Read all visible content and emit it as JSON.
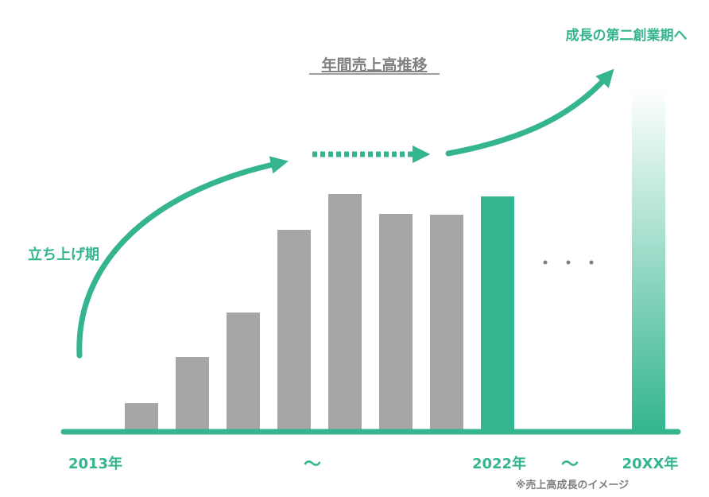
{
  "chart_data": {
    "type": "bar",
    "title": "年間売上高推移",
    "categories": [
      null,
      null,
      null,
      null,
      null,
      null,
      null,
      "2022年",
      "20XX年"
    ],
    "values": [
      36,
      94,
      150,
      254,
      299,
      274,
      273,
      296,
      433
    ],
    "colors": [
      "#a6a6a6",
      "#a6a6a6",
      "#a6a6a6",
      "#a6a6a6",
      "#a6a6a6",
      "#a6a6a6",
      "#a6a6a6",
      "#34b58f",
      "#34b58f"
    ],
    "fade_last": true,
    "ylim": [
      0,
      450
    ],
    "annotations": {
      "start": "2013年",
      "range1": "〜",
      "range2": "〜",
      "phase1": "立ち上げ期",
      "phase2": "成長の第二創業期へ",
      "note": "※売上高成長のイメージ"
    }
  }
}
